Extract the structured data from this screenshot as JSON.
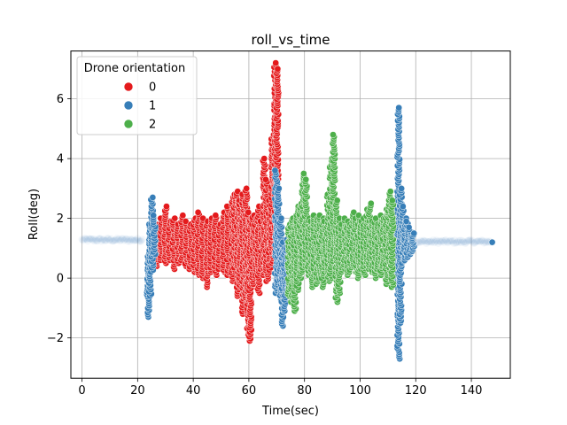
{
  "chart_data": {
    "type": "scatter",
    "title": "roll_vs_time",
    "xlabel": "Time(sec)",
    "ylabel": "Roll(deg)",
    "xlim": [
      -4,
      154
    ],
    "ylim": [
      -3.35,
      7.6
    ],
    "xticks": [
      0,
      20,
      40,
      60,
      80,
      100,
      120,
      140
    ],
    "yticks": [
      -2,
      0,
      2,
      4,
      6
    ],
    "xtick_labels": [
      "0",
      "20",
      "40",
      "60",
      "80",
      "100",
      "120",
      "140"
    ],
    "ytick_labels": [
      "−2",
      "0",
      "2",
      "4",
      "6"
    ],
    "grid": true,
    "legend": {
      "title": "Drone orientation",
      "placement": "top-left",
      "entries": [
        "0",
        "1",
        "2"
      ]
    },
    "series": [
      {
        "name": "0",
        "color": "#e41a1c",
        "bursts": [
          {
            "t": 27.0,
            "min": 0.4,
            "max": 1.8
          },
          {
            "t": 28.5,
            "min": 0.6,
            "max": 2.0
          },
          {
            "t": 30.0,
            "min": 0.5,
            "max": 2.4
          },
          {
            "t": 31.5,
            "min": 0.6,
            "max": 1.9
          },
          {
            "t": 33.0,
            "min": 0.3,
            "max": 2.0
          },
          {
            "t": 34.5,
            "min": 0.5,
            "max": 1.8
          },
          {
            "t": 36.0,
            "min": 0.6,
            "max": 2.1
          },
          {
            "t": 37.5,
            "min": 0.4,
            "max": 1.9
          },
          {
            "t": 39.0,
            "min": 0.3,
            "max": 1.8
          },
          {
            "t": 40.5,
            "min": 0.2,
            "max": 2.0
          },
          {
            "t": 42.0,
            "min": 0.1,
            "max": 2.2
          },
          {
            "t": 43.5,
            "min": 0.0,
            "max": 2.0
          },
          {
            "t": 45.0,
            "min": -0.3,
            "max": 1.9
          },
          {
            "t": 46.5,
            "min": 0.2,
            "max": 2.0
          },
          {
            "t": 48.0,
            "min": 0.1,
            "max": 2.1
          },
          {
            "t": 49.5,
            "min": 0.3,
            "max": 1.8
          },
          {
            "t": 51.0,
            "min": 0.2,
            "max": 2.2
          },
          {
            "t": 52.5,
            "min": 0.1,
            "max": 2.4
          },
          {
            "t": 54.0,
            "min": -0.1,
            "max": 2.7
          },
          {
            "t": 55.0,
            "min": 0.2,
            "max": 2.8
          },
          {
            "t": 56.0,
            "min": -0.6,
            "max": 2.9
          },
          {
            "t": 57.0,
            "min": -0.3,
            "max": 2.6
          },
          {
            "t": 58.0,
            "min": -1.2,
            "max": 2.8
          },
          {
            "t": 59.0,
            "min": -0.8,
            "max": 3.0
          },
          {
            "t": 59.8,
            "min": -1.9,
            "max": 2.2
          },
          {
            "t": 60.5,
            "min": -2.1,
            "max": 2.0
          },
          {
            "t": 61.5,
            "min": -0.2,
            "max": 2.1
          },
          {
            "t": 62.5,
            "min": 0.0,
            "max": 2.0
          },
          {
            "t": 63.5,
            "min": -0.5,
            "max": 2.4
          },
          {
            "t": 64.5,
            "min": 0.3,
            "max": 1.9
          },
          {
            "t": 65.5,
            "min": 0.1,
            "max": 4.0
          },
          {
            "t": 66.5,
            "min": -0.1,
            "max": 3.3
          },
          {
            "t": 67.5,
            "min": 0.2,
            "max": 2.6
          },
          {
            "t": 68.5,
            "min": 0.5,
            "max": 4.8
          },
          {
            "t": 69.5,
            "min": 0.8,
            "max": 7.2
          },
          {
            "t": 70.2,
            "min": 1.0,
            "max": 7.0
          }
        ]
      },
      {
        "name": "1",
        "color": "#377eb8",
        "bursts": [
          {
            "t": 23.8,
            "min": -1.3,
            "max": 0.8
          },
          {
            "t": 24.5,
            "min": -0.6,
            "max": 1.8
          },
          {
            "t": 25.2,
            "min": 0.2,
            "max": 2.7
          },
          {
            "t": 26.0,
            "min": 0.8,
            "max": 2.1
          },
          {
            "t": 69.8,
            "min": -0.5,
            "max": 3.6
          },
          {
            "t": 70.6,
            "min": -0.3,
            "max": 3.0
          },
          {
            "t": 71.4,
            "min": -0.8,
            "max": 2.0
          },
          {
            "t": 72.2,
            "min": -1.6,
            "max": 1.2
          },
          {
            "t": 73.0,
            "min": -1.1,
            "max": 1.0
          },
          {
            "t": 73.8,
            "min": -0.4,
            "max": 1.3
          },
          {
            "t": 112.0,
            "min": -0.2,
            "max": 2.0
          },
          {
            "t": 113.0,
            "min": 0.5,
            "max": 2.4
          },
          {
            "t": 113.8,
            "min": -2.7,
            "max": 5.7
          },
          {
            "t": 114.6,
            "min": -1.5,
            "max": 3.0
          },
          {
            "t": 115.4,
            "min": 0.5,
            "max": 2.4
          },
          {
            "t": 116.2,
            "min": 0.6,
            "max": 2.0
          },
          {
            "t": 117.0,
            "min": 0.7,
            "max": 1.9
          },
          {
            "t": 118.0,
            "min": 0.8,
            "max": 1.7
          },
          {
            "t": 119.0,
            "min": 0.9,
            "max": 1.5
          }
        ],
        "points": [
          [
            147.5,
            1.2
          ]
        ]
      },
      {
        "name": "2",
        "color": "#4daf4a",
        "bursts": [
          {
            "t": 74.5,
            "min": -0.6,
            "max": 1.8
          },
          {
            "t": 75.5,
            "min": -0.8,
            "max": 2.0
          },
          {
            "t": 76.5,
            "min": -1.1,
            "max": 1.9
          },
          {
            "t": 77.5,
            "min": -0.4,
            "max": 2.4
          },
          {
            "t": 78.5,
            "min": 0.0,
            "max": 2.5
          },
          {
            "t": 79.5,
            "min": 0.2,
            "max": 3.5
          },
          {
            "t": 80.5,
            "min": 0.4,
            "max": 3.3
          },
          {
            "t": 81.5,
            "min": 0.1,
            "max": 2.0
          },
          {
            "t": 82.5,
            "min": -0.3,
            "max": 1.9
          },
          {
            "t": 83.5,
            "min": 0.1,
            "max": 2.1
          },
          {
            "t": 84.5,
            "min": -0.2,
            "max": 2.0
          },
          {
            "t": 85.5,
            "min": 0.0,
            "max": 2.1
          },
          {
            "t": 86.5,
            "min": -0.3,
            "max": 2.0
          },
          {
            "t": 87.5,
            "min": 0.2,
            "max": 1.9
          },
          {
            "t": 88.5,
            "min": -0.1,
            "max": 2.8
          },
          {
            "t": 89.5,
            "min": 0.0,
            "max": 4.0
          },
          {
            "t": 90.5,
            "min": 0.5,
            "max": 4.8
          },
          {
            "t": 91.5,
            "min": -0.8,
            "max": 2.6
          },
          {
            "t": 92.5,
            "min": -0.5,
            "max": 2.0
          },
          {
            "t": 93.5,
            "min": 0.2,
            "max": 1.8
          },
          {
            "t": 94.5,
            "min": 0.3,
            "max": 2.0
          },
          {
            "t": 95.5,
            "min": 0.1,
            "max": 1.9
          },
          {
            "t": 96.5,
            "min": 0.2,
            "max": 1.8
          },
          {
            "t": 97.5,
            "min": 0.4,
            "max": 2.2
          },
          {
            "t": 98.5,
            "min": 0.2,
            "max": 2.0
          },
          {
            "t": 99.5,
            "min": 0.0,
            "max": 2.1
          },
          {
            "t": 100.5,
            "min": 0.3,
            "max": 1.9
          },
          {
            "t": 101.5,
            "min": 0.1,
            "max": 2.0
          },
          {
            "t": 102.5,
            "min": 0.4,
            "max": 2.3
          },
          {
            "t": 103.5,
            "min": 0.3,
            "max": 2.5
          },
          {
            "t": 104.5,
            "min": 0.2,
            "max": 1.9
          },
          {
            "t": 105.5,
            "min": 0.0,
            "max": 2.0
          },
          {
            "t": 106.5,
            "min": 0.3,
            "max": 1.8
          },
          {
            "t": 107.5,
            "min": 0.1,
            "max": 2.1
          },
          {
            "t": 108.5,
            "min": 0.4,
            "max": 2.0
          },
          {
            "t": 109.5,
            "min": -0.2,
            "max": 2.3
          },
          {
            "t": 110.5,
            "min": 0.2,
            "max": 2.9
          },
          {
            "t": 111.5,
            "min": -0.3,
            "max": 2.6
          }
        ]
      }
    ],
    "baseline": {
      "color": "#377eb8",
      "description_value": 1.25,
      "segments": [
        [
          0,
          22,
          1.28
        ],
        [
          120,
          147,
          1.22
        ]
      ]
    }
  }
}
